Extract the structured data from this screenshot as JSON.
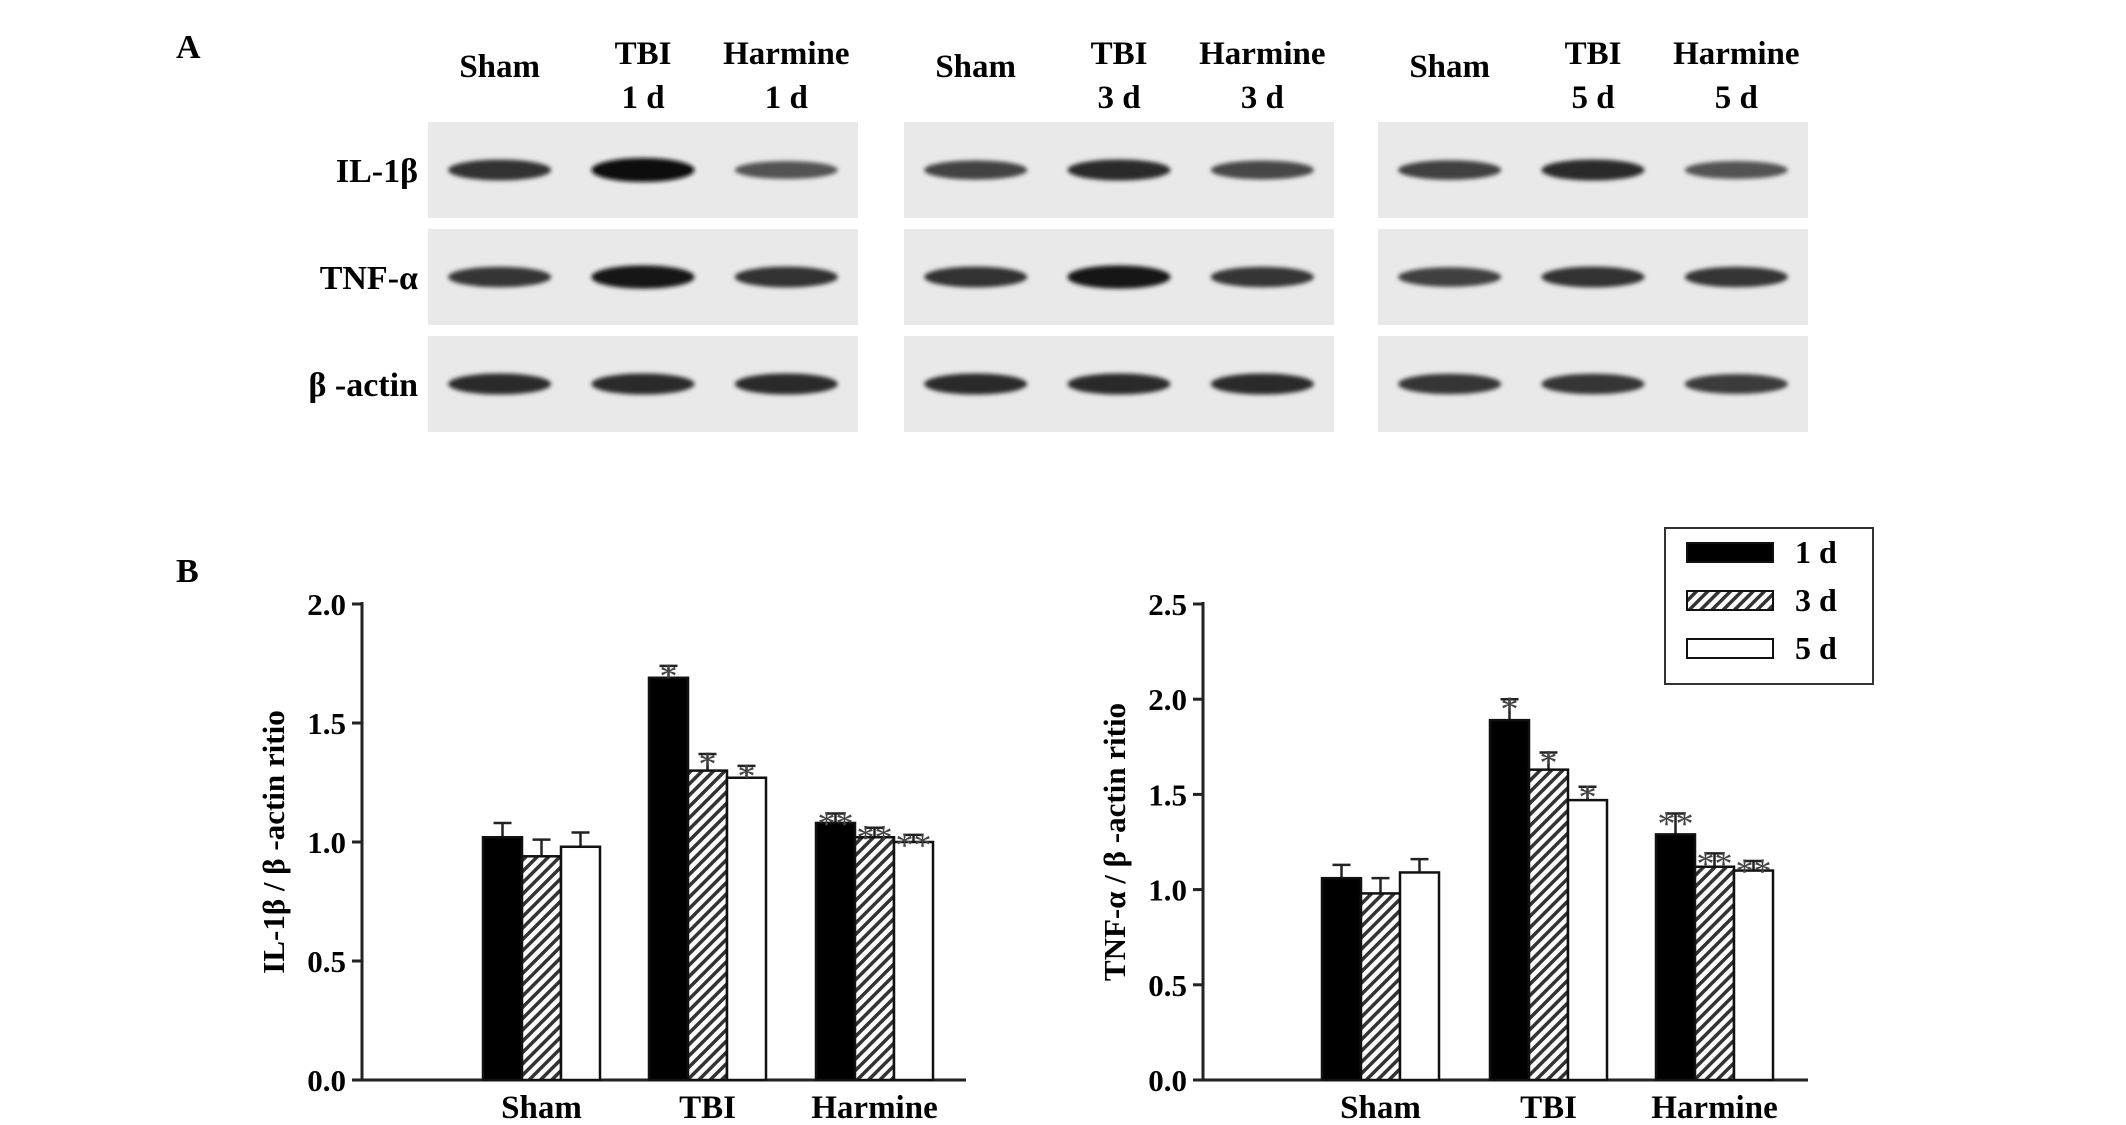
{
  "panel_a_label": "A",
  "panel_b_label": "B",
  "blot": {
    "groups": [
      {
        "columns": [
          [
            "Sham",
            ""
          ],
          [
            "TBI",
            "1 d"
          ],
          [
            "Harmine",
            "1 d"
          ]
        ]
      },
      {
        "columns": [
          [
            "Sham",
            ""
          ],
          [
            "TBI",
            "3 d"
          ],
          [
            "Harmine",
            "3 d"
          ]
        ]
      },
      {
        "columns": [
          [
            "Sham",
            ""
          ],
          [
            "TBI",
            "5 d"
          ],
          [
            "Harmine",
            "5 d"
          ]
        ]
      }
    ],
    "rows": [
      "IL-1β",
      "TNF-α",
      "β -actin"
    ],
    "band_intensity": [
      [
        [
          0.8,
          1.0,
          0.62
        ],
        [
          0.7,
          0.82,
          0.68
        ],
        [
          0.72,
          0.82,
          0.62
        ]
      ],
      [
        [
          0.78,
          0.95,
          0.8
        ],
        [
          0.8,
          0.95,
          0.78
        ],
        [
          0.72,
          0.8,
          0.78
        ]
      ],
      [
        [
          0.82,
          0.82,
          0.82
        ],
        [
          0.82,
          0.82,
          0.82
        ],
        [
          0.78,
          0.78,
          0.74
        ]
      ]
    ]
  },
  "chart_data": [
    {
      "type": "bar",
      "ylabel": "IL-1β  / β -actin ritio",
      "ylim": [
        0,
        2.0
      ],
      "yticks": [
        "0.0",
        "0.5",
        "1.0",
        "1.5",
        "2.0"
      ],
      "categories": [
        "Sham",
        "TBI",
        "Harmine"
      ],
      "series": [
        {
          "name": "1 d",
          "values": [
            1.02,
            1.69,
            1.08
          ],
          "errors": [
            0.06,
            0.05,
            0.04
          ]
        },
        {
          "name": "3 d",
          "values": [
            0.94,
            1.3,
            1.02
          ],
          "errors": [
            0.07,
            0.07,
            0.04
          ]
        },
        {
          "name": "5 d",
          "values": [
            0.98,
            1.27,
            1.0
          ],
          "errors": [
            0.06,
            0.05,
            0.03
          ]
        }
      ],
      "annotations": [
        [
          "",
          "*",
          "**"
        ],
        [
          "",
          "*",
          "**"
        ],
        [
          "",
          "*",
          "**"
        ]
      ]
    },
    {
      "type": "bar",
      "ylabel": "TNF-α  / β -actin ritio",
      "ylim": [
        0,
        2.5
      ],
      "yticks": [
        "0.0",
        "0.5",
        "1.0",
        "1.5",
        "2.0",
        "2.5"
      ],
      "categories": [
        "Sham",
        "TBI",
        "Harmine"
      ],
      "series": [
        {
          "name": "1 d",
          "values": [
            1.06,
            1.89,
            1.29
          ],
          "errors": [
            0.07,
            0.11,
            0.11
          ]
        },
        {
          "name": "3 d",
          "values": [
            0.98,
            1.63,
            1.12
          ],
          "errors": [
            0.08,
            0.09,
            0.07
          ]
        },
        {
          "name": "5 d",
          "values": [
            1.09,
            1.47,
            1.1
          ],
          "errors": [
            0.07,
            0.07,
            0.05
          ]
        }
      ],
      "annotations": [
        [
          "",
          "*",
          "**"
        ],
        [
          "",
          "*",
          "**"
        ],
        [
          "",
          "*",
          "**"
        ]
      ],
      "legend": [
        "1 d",
        "3 d",
        "5 d"
      ],
      "legend_position": "top-right"
    }
  ]
}
